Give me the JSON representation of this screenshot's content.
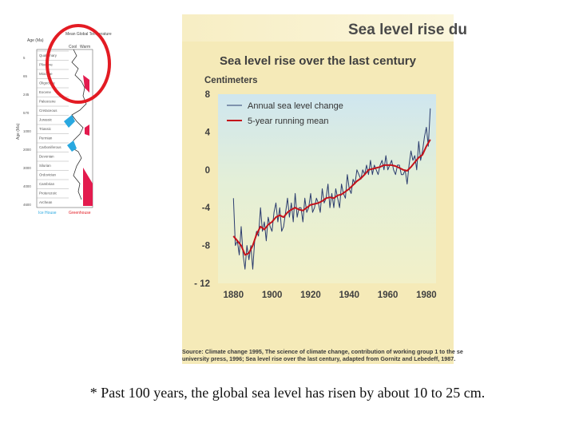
{
  "mini_figure": {
    "header_left": "Age (Ma)",
    "header_right": "Mean Global Temperature",
    "cold_label": "Cool",
    "warm_label": "Warm",
    "axis_label": "Age (Ma)",
    "periods": [
      "Quaternary",
      "Pliocene",
      "Miocene",
      "Oligocene",
      "Eocene",
      "Paleocene",
      "Cretaceous",
      "Jurassic",
      "Triassic",
      "Permian",
      "Carboniferous",
      "Devonian",
      "Silurian",
      "Ordovician",
      "Cambrian",
      "Proterozoic",
      "Archean"
    ],
    "ages": [
      "5",
      "65",
      "245",
      "570",
      "1000",
      "2000",
      "3000",
      "4000",
      "4600"
    ],
    "footer_left": "Ice House",
    "footer_right": "Greenhouse",
    "highlight_color": "#e31b23"
  },
  "panel": {
    "header_title": "Sea level rise du",
    "source_line1": "Source: Climate change 1995, The science of climate change, contribution of working group 1 to the se",
    "source_line2": "university press, 1996; Sea level rise over the last century, adapted from Gornitz and Lebedeff, 1987."
  },
  "chart_data": {
    "type": "line",
    "title": "Sea level rise over the last century",
    "ylabel": "Centimeters",
    "xlabel": "",
    "xlim": [
      1872,
      1985
    ],
    "ylim": [
      -12,
      8
    ],
    "x_ticks": [
      1880,
      1900,
      1920,
      1940,
      1960,
      1980
    ],
    "y_ticks": [
      8,
      4,
      0,
      -4,
      -8,
      -12
    ],
    "y_tick_labels": [
      "8",
      "4",
      "0",
      "-4",
      "-8",
      "- 12"
    ],
    "grid": false,
    "legend": "top-left",
    "series": [
      {
        "name": "Annual sea level change",
        "color": "#2b3c6e",
        "x": [
          1880,
          1881,
          1882,
          1883,
          1884,
          1885,
          1886,
          1887,
          1888,
          1889,
          1890,
          1891,
          1892,
          1893,
          1894,
          1895,
          1896,
          1897,
          1898,
          1899,
          1900,
          1901,
          1902,
          1903,
          1904,
          1905,
          1906,
          1907,
          1908,
          1909,
          1910,
          1911,
          1912,
          1913,
          1914,
          1915,
          1916,
          1917,
          1918,
          1919,
          1920,
          1921,
          1922,
          1923,
          1924,
          1925,
          1926,
          1927,
          1928,
          1929,
          1930,
          1931,
          1932,
          1933,
          1934,
          1935,
          1936,
          1937,
          1938,
          1939,
          1940,
          1941,
          1942,
          1943,
          1944,
          1945,
          1946,
          1947,
          1948,
          1949,
          1950,
          1951,
          1952,
          1953,
          1954,
          1955,
          1956,
          1957,
          1958,
          1959,
          1960,
          1961,
          1962,
          1963,
          1964,
          1965,
          1966,
          1967,
          1968,
          1969,
          1970,
          1971,
          1972,
          1973,
          1974,
          1975,
          1976,
          1977,
          1978,
          1979,
          1980,
          1981,
          1982
        ],
        "values": [
          -3,
          -8,
          -7.5,
          -9,
          -6,
          -9,
          -10.5,
          -8,
          -9.5,
          -8,
          -10.5,
          -7.5,
          -6.5,
          -7,
          -4,
          -6.5,
          -5.5,
          -7.5,
          -5,
          -6,
          -6.5,
          -4.5,
          -3.5,
          -5.5,
          -4,
          -6.5,
          -6,
          -4.5,
          -3,
          -5,
          -3.5,
          -5.5,
          -2.5,
          -5,
          -4,
          -4,
          -5.5,
          -3,
          -4.5,
          -4,
          -2.5,
          -4.5,
          -4,
          -3,
          -3.5,
          -4.5,
          -2,
          -3.5,
          -3,
          -1.5,
          -4,
          -2.5,
          -4,
          -2,
          -3,
          -4,
          -1.5,
          -2.5,
          -3,
          -0.5,
          -2,
          -2.5,
          -1,
          -1.5,
          0,
          -0.5,
          -1,
          0,
          -0.5,
          0.5,
          -0.5,
          1,
          -0.5,
          0.5,
          0,
          -0.5,
          0.5,
          1,
          0,
          1.5,
          0,
          0.5,
          1,
          0,
          -0.5,
          0.5,
          0.5,
          -0.5,
          -0.5,
          0,
          -1.5,
          0.5,
          2,
          1,
          1.5,
          0,
          3,
          1,
          2,
          3.5,
          4.5,
          2.5,
          6.5
        ]
      },
      {
        "name": "5-year running mean",
        "color": "#c4121a",
        "x": [
          1880,
          1882,
          1884,
          1886,
          1888,
          1890,
          1892,
          1894,
          1896,
          1898,
          1900,
          1902,
          1904,
          1906,
          1908,
          1910,
          1912,
          1914,
          1916,
          1918,
          1920,
          1922,
          1924,
          1926,
          1928,
          1930,
          1932,
          1934,
          1936,
          1938,
          1940,
          1942,
          1944,
          1946,
          1948,
          1950,
          1952,
          1954,
          1956,
          1958,
          1960,
          1962,
          1964,
          1966,
          1968,
          1970,
          1972,
          1974,
          1976,
          1978,
          1980,
          1982
        ],
        "values": [
          -7,
          -7.5,
          -8,
          -9,
          -8.8,
          -8,
          -6.8,
          -6,
          -6.3,
          -5.8,
          -5.5,
          -5,
          -4.8,
          -5,
          -4.5,
          -4.2,
          -4,
          -4.2,
          -4.3,
          -4,
          -3.7,
          -3.6,
          -3.5,
          -3.3,
          -3,
          -2.9,
          -3,
          -2.7,
          -2.6,
          -2.3,
          -2,
          -1.6,
          -1.2,
          -0.9,
          -0.5,
          0,
          0.1,
          0.2,
          0.3,
          0.5,
          0.5,
          0.5,
          0.4,
          0.2,
          0,
          -0.1,
          0.3,
          0.8,
          1.3,
          1.6,
          2.5,
          3.2
        ]
      }
    ]
  },
  "caption": "* Past 100 years, the global sea level has risen by about 10 to 25 cm."
}
